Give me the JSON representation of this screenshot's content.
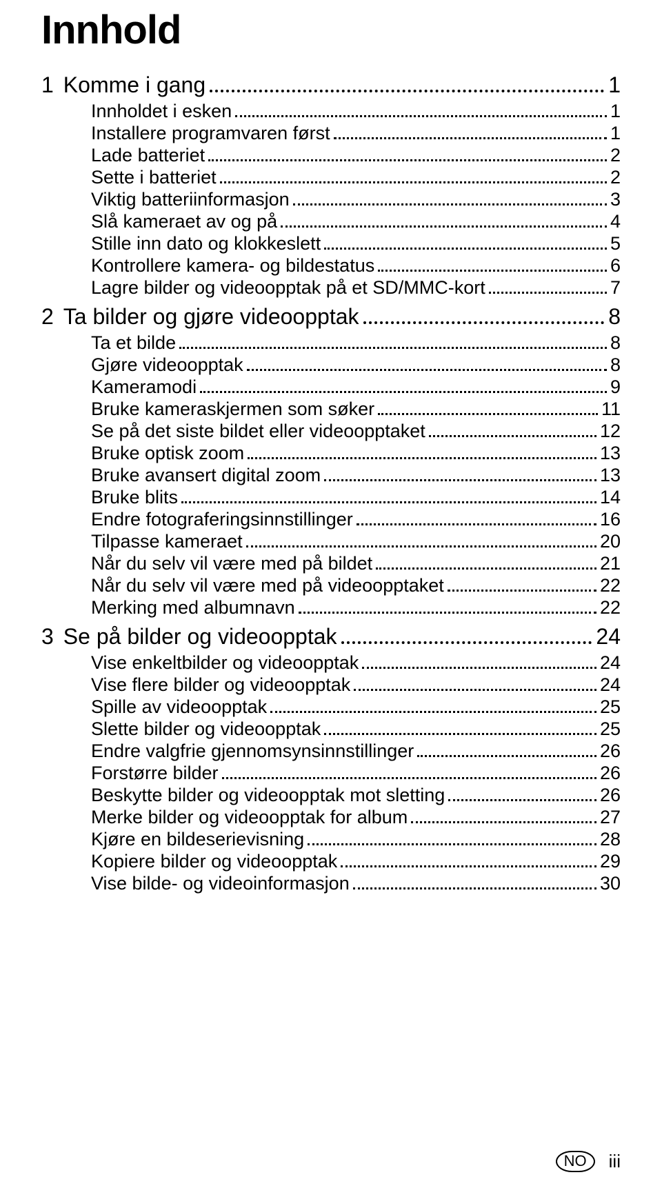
{
  "title": "Innhold",
  "footer": {
    "lang": "NO",
    "roman": "iii"
  },
  "colors": {
    "text": "#000000",
    "background": "#ffffff"
  },
  "typography": {
    "title_size": 58,
    "title_weight": 700,
    "chapter_size": 32,
    "chapter_weight": 400,
    "entry_size": 27,
    "entry_weight": 300
  },
  "chapters": [
    {
      "num": "1",
      "label": "Komme i gang",
      "page": "1",
      "entries": [
        {
          "label": "Innholdet i esken",
          "page": "1"
        },
        {
          "label": "Installere programvaren først",
          "page": "1"
        },
        {
          "label": "Lade batteriet",
          "page": "2"
        },
        {
          "label": "Sette i batteriet",
          "page": "2"
        },
        {
          "label": "Viktig batteriinformasjon",
          "page": "3"
        },
        {
          "label": "Slå kameraet av og på",
          "page": "4"
        },
        {
          "label": "Stille inn dato og klokkeslett",
          "page": "5"
        },
        {
          "label": "Kontrollere kamera- og bildestatus",
          "page": "6"
        },
        {
          "label": "Lagre bilder og videoopptak på et SD/MMC-kort",
          "page": "7"
        }
      ]
    },
    {
      "num": "2",
      "label": "Ta bilder og gjøre videoopptak",
      "page": "8",
      "entries": [
        {
          "label": "Ta et bilde",
          "page": "8"
        },
        {
          "label": "Gjøre videoopptak",
          "page": "8"
        },
        {
          "label": "Kameramodi",
          "page": "9"
        },
        {
          "label": "Bruke kameraskjermen som søker",
          "page": "11"
        },
        {
          "label": "Se på det siste bildet eller videoopptaket",
          "page": "12"
        },
        {
          "label": "Bruke optisk zoom",
          "page": "13"
        },
        {
          "label": "Bruke avansert digital zoom",
          "page": "13"
        },
        {
          "label": "Bruke blits",
          "page": "14"
        },
        {
          "label": "Endre fotograferingsinnstillinger",
          "page": "16"
        },
        {
          "label": "Tilpasse kameraet",
          "page": "20"
        },
        {
          "label": "Når du selv vil være med på bildet",
          "page": "21"
        },
        {
          "label": "Når du selv vil være med på videoopptaket",
          "page": "22"
        },
        {
          "label": "Merking med albumnavn",
          "page": "22"
        }
      ]
    },
    {
      "num": "3",
      "label": "Se på bilder og videoopptak",
      "page": "24",
      "entries": [
        {
          "label": "Vise enkeltbilder og videoopptak",
          "page": "24"
        },
        {
          "label": "Vise flere bilder og videoopptak",
          "page": "24"
        },
        {
          "label": "Spille av videoopptak",
          "page": "25"
        },
        {
          "label": "Slette bilder og videoopptak",
          "page": "25"
        },
        {
          "label": "Endre valgfrie gjennomsynsinnstillinger",
          "page": "26"
        },
        {
          "label": "Forstørre bilder",
          "page": "26"
        },
        {
          "label": "Beskytte bilder og videoopptak mot sletting",
          "page": "26"
        },
        {
          "label": "Merke bilder og videoopptak for album",
          "page": "27"
        },
        {
          "label": "Kjøre en bildeserievisning",
          "page": "28"
        },
        {
          "label": "Kopiere bilder og videoopptak",
          "page": "29"
        },
        {
          "label": "Vise bilde- og videoinformasjon",
          "page": "30"
        }
      ]
    }
  ]
}
